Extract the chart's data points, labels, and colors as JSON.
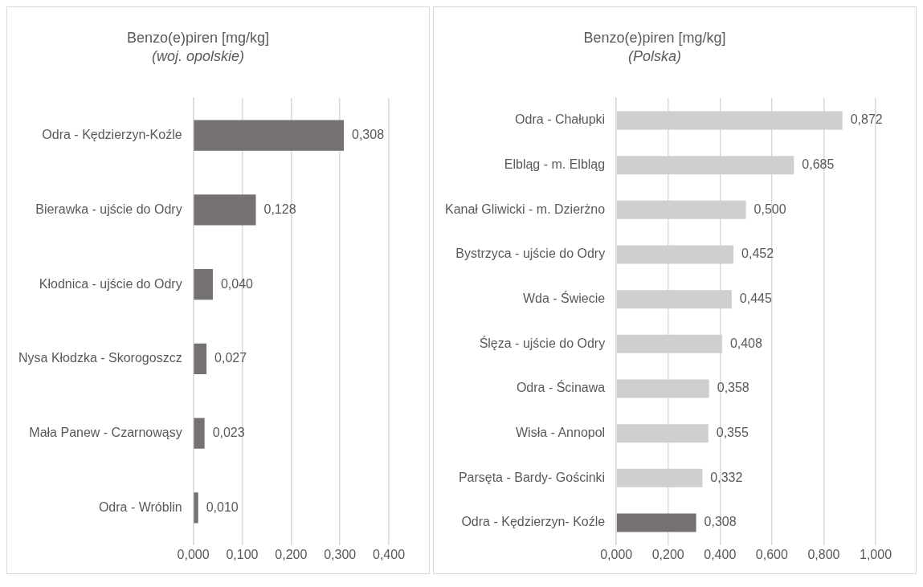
{
  "chart_data": [
    {
      "type": "bar",
      "orientation": "horizontal",
      "title": "Benzo(e)piren [mg/kg]",
      "subtitle": "(woj. opolskie)",
      "categories": [
        "Odra - Kędzierzyn-Koźle",
        "Bierawka - ujście do Odry",
        "Kłodnica - ujście do Odry",
        "Nysa Kłodzka - Skorogoszcz",
        "Mała Panew - Czarnowąsy",
        "Odra - Wróblin"
      ],
      "values": [
        0.308,
        0.128,
        0.04,
        0.027,
        0.023,
        0.01
      ],
      "color": "#767171",
      "value_labels": [
        "0,308",
        "0,128",
        "0,040",
        "0,027",
        "0,023",
        "0,010"
      ],
      "xlim": [
        0,
        0.4
      ],
      "xticks": [
        {
          "value": 0,
          "label": "0,000"
        },
        {
          "value": 0.1,
          "label": "0,100"
        },
        {
          "value": 0.2,
          "label": "0,200"
        },
        {
          "value": 0.3,
          "label": "0,300"
        },
        {
          "value": 0.4,
          "label": "0,400"
        }
      ],
      "grid": "x",
      "legend": false
    },
    {
      "type": "bar",
      "orientation": "horizontal",
      "title": "Benzo(e)piren [mg/kg]",
      "subtitle": "(Polska)",
      "categories": [
        "Odra - Chałupki",
        "Elbląg - m. Elbląg",
        "Kanał Gliwicki - m. Dzierżno",
        "Bystrzyca - ujście do Odry",
        "Wda - Świecie",
        "Ślęza - ujście do Odry",
        "Odra - Ścinawa",
        "Wisła - Annopol",
        "Parsęta - Bardy- Gościnki",
        "Odra - Kędzierzyn- Koźle"
      ],
      "values": [
        0.872,
        0.685,
        0.5,
        0.452,
        0.445,
        0.408,
        0.358,
        0.355,
        0.332,
        0.308
      ],
      "colors": [
        "#d0cece",
        "#d0cece",
        "#d0cece",
        "#d0cece",
        "#d0cece",
        "#d0cece",
        "#d0cece",
        "#d0cece",
        "#d0cece",
        "#767171"
      ],
      "value_labels": [
        "0,872",
        "0,685",
        "0,500",
        "0,452",
        "0,445",
        "0,408",
        "0,358",
        "0,355",
        "0,332",
        "0,308"
      ],
      "xlim": [
        0,
        1
      ],
      "xticks": [
        {
          "value": 0,
          "label": "0,000"
        },
        {
          "value": 0.2,
          "label": "0,200"
        },
        {
          "value": 0.4,
          "label": "0,400"
        },
        {
          "value": 0.6,
          "label": "0,600"
        },
        {
          "value": 0.8,
          "label": "0,800"
        },
        {
          "value": 1,
          "label": "1,000"
        }
      ],
      "grid": "x",
      "legend": false
    }
  ]
}
